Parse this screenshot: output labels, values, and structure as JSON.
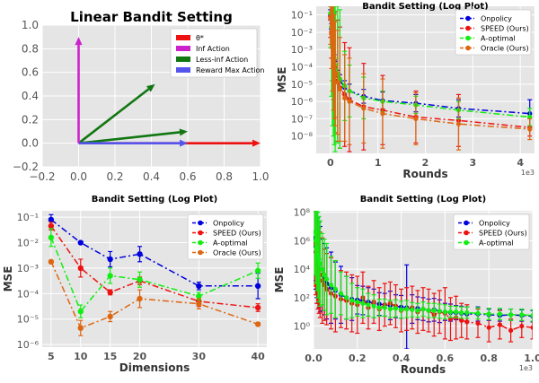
{
  "chart_data": [
    {
      "type": "line",
      "title": "Linear Bandit Setting",
      "xlabel": "",
      "ylabel": "",
      "xlim": [
        -0.2,
        1.0
      ],
      "ylim": [
        -0.2,
        1.0
      ],
      "xticks": [
        "−0.2",
        "0.0",
        "0.2",
        "0.4",
        "0.6",
        "0.8",
        "1.0"
      ],
      "yticks": [
        "−0.2",
        "0.0",
        "0.2",
        "0.4",
        "0.6",
        "0.8",
        "1.0"
      ],
      "legend_position": "top-right",
      "series": [
        {
          "name": "θ*",
          "color": "#ee1111",
          "from": [
            0,
            0
          ],
          "to": [
            1.0,
            0.0
          ]
        },
        {
          "name": "Inf Action",
          "color": "#cc22cc",
          "from": [
            0,
            0
          ],
          "to": [
            0.0,
            0.9
          ]
        },
        {
          "name": "Less-inf Action",
          "color": "#117711",
          "from": [
            0,
            0
          ],
          "to": [
            0.42,
            0.5
          ]
        },
        {
          "name": "Reward Max Action",
          "color": "#5555ee",
          "from": [
            0,
            0
          ],
          "to": [
            0.6,
            0.0
          ]
        }
      ],
      "extra_arrows": [
        {
          "color": "#117711",
          "from": [
            0,
            0
          ],
          "to": [
            0.6,
            0.1
          ]
        }
      ]
    },
    {
      "type": "line",
      "title": "Bandit Setting (Log Plot)",
      "xlabel": "Rounds",
      "ylabel": "MSE",
      "xlim": [
        -300,
        4300
      ],
      "ylim_exp": [
        -9,
        -0.5
      ],
      "xticks": [
        {
          "v": 0,
          "label": "0"
        },
        {
          "v": 1000,
          "label": "1"
        },
        {
          "v": 2000,
          "label": "2"
        },
        {
          "v": 3000,
          "label": "3"
        },
        {
          "v": 4000,
          "label": "4"
        }
      ],
      "yticks": [
        {
          "e": -1,
          "label": "10⁻¹"
        },
        {
          "e": -2,
          "label": "10⁻²"
        },
        {
          "e": -3,
          "label": "10⁻³"
        },
        {
          "e": -4,
          "label": "10⁻⁴"
        },
        {
          "e": -5,
          "label": "10⁻⁵"
        },
        {
          "e": -6,
          "label": "10⁻⁶"
        },
        {
          "e": -7,
          "label": "10⁻⁷"
        },
        {
          "e": -8,
          "label": "10⁻⁸"
        }
      ],
      "x_offset_label": "1e3",
      "legend_position": "top-right",
      "series": [
        {
          "name": "Onpolicy",
          "color": "#0000dd",
          "dash": "7,3,2,3",
          "x": [
            0,
            20,
            40,
            60,
            80,
            100,
            150,
            200,
            300,
            400,
            700,
            1100,
            1800,
            2700,
            4200
          ],
          "y": [
            -1.0,
            -1.8,
            -2.5,
            -3.1,
            -3.6,
            -4.0,
            -4.5,
            -4.8,
            -5.2,
            -5.4,
            -5.7,
            -5.95,
            -6.1,
            -6.4,
            -6.7
          ],
          "err": [
            0.3,
            0.3,
            0.3,
            0.3,
            0.3,
            0.3,
            0.3,
            0.35,
            0.4,
            0.4,
            0.4,
            0.5,
            0.5,
            0.5,
            0.8
          ]
        },
        {
          "name": "SPEED (Ours)",
          "color": "#ee1111",
          "dash": "7,3,2,3",
          "x": [
            0,
            20,
            40,
            60,
            80,
            100,
            150,
            200,
            300,
            400,
            700,
            1100,
            1800,
            2700,
            4200
          ],
          "y": [
            -1.1,
            -2.0,
            -2.8,
            -3.4,
            -3.9,
            -4.3,
            -4.8,
            -5.2,
            -5.6,
            -5.9,
            -6.3,
            -6.5,
            -6.9,
            -7.1,
            -7.5
          ],
          "err": [
            1.2,
            1.5,
            2.0,
            2.5,
            3.0,
            3.5,
            3.5,
            3.5,
            3.0,
            3.0,
            2.5,
            2.0,
            1.5,
            1.5,
            0.5
          ]
        },
        {
          "name": "A-optimal",
          "color": "#11ee11",
          "dash": "7,3,2,3",
          "x": [
            0,
            20,
            40,
            60,
            80,
            100,
            150,
            200,
            300,
            400,
            700,
            1100,
            1800,
            2700,
            4200
          ],
          "y": [
            -0.9,
            -1.7,
            -2.4,
            -3.0,
            -3.5,
            -3.9,
            -4.4,
            -4.7,
            -5.1,
            -5.4,
            -5.8,
            -6.0,
            -6.2,
            -6.5,
            -6.9
          ],
          "err": [
            2.0,
            4.0,
            5.0,
            5.0,
            5.0,
            5.0,
            4.0,
            4.0,
            2.0,
            1.5,
            1.2,
            0.6,
            0.5,
            0.5,
            0.5
          ]
        },
        {
          "name": "Oracle (Ours)",
          "color": "#dd6611",
          "dash": "7,3,2,3",
          "x": [
            0,
            20,
            40,
            60,
            80,
            100,
            150,
            200,
            300,
            400,
            700,
            1100,
            1800,
            2700,
            4200
          ],
          "y": [
            -1.2,
            -2.1,
            -2.9,
            -3.5,
            -4.0,
            -4.4,
            -4.9,
            -5.3,
            -5.8,
            -6.0,
            -6.4,
            -6.7,
            -7.0,
            -7.3,
            -7.6
          ],
          "err": [
            1.5,
            2.0,
            2.5,
            3.0,
            3.0,
            3.0,
            3.0,
            3.0,
            2.5,
            2.5,
            2.0,
            2.0,
            1.5,
            1.5,
            0.6
          ]
        }
      ]
    },
    {
      "type": "line",
      "title": "Bandit Setting (Log Plot)",
      "xlabel": "Dimensions",
      "ylabel": "MSE",
      "xlim": [
        3.5,
        41.5
      ],
      "ylim_exp": [
        -6.1,
        -0.75
      ],
      "xticks": [
        {
          "v": 5,
          "label": "5"
        },
        {
          "v": 10,
          "label": "10"
        },
        {
          "v": 15,
          "label": "15"
        },
        {
          "v": 20,
          "label": "20"
        },
        {
          "v": 30,
          "label": "30"
        },
        {
          "v": 40,
          "label": "40"
        }
      ],
      "yticks": [
        {
          "e": -1,
          "label": "10⁻¹"
        },
        {
          "e": -2,
          "label": "10⁻²"
        },
        {
          "e": -3,
          "label": "10⁻³"
        },
        {
          "e": -4,
          "label": "10⁻⁴"
        },
        {
          "e": -5,
          "label": "10⁻⁵"
        },
        {
          "e": -6,
          "label": "10⁻⁶"
        }
      ],
      "legend_position": "top-right",
      "series": [
        {
          "name": "Onpolicy",
          "color": "#0000dd",
          "dash": "7,3,2,3",
          "x": [
            5,
            10,
            15,
            20,
            30,
            40
          ],
          "y": [
            -1.1,
            -2.0,
            -2.65,
            -2.45,
            -3.7,
            -3.7
          ],
          "err": [
            0.2,
            0.05,
            0.3,
            0.3,
            0.15,
            0.5
          ]
        },
        {
          "name": "SPEED (Ours)",
          "color": "#ee1111",
          "dash": "7,3,2,3",
          "x": [
            5,
            10,
            15,
            20,
            30,
            40
          ],
          "y": [
            -1.35,
            -3.0,
            -3.95,
            -3.5,
            -4.3,
            -4.55
          ],
          "err": [
            0.15,
            0.35,
            0.1,
            0.15,
            0.2,
            0.15
          ]
        },
        {
          "name": "A-optimal",
          "color": "#11ee11",
          "dash": "7,3,2,3",
          "x": [
            5,
            10,
            15,
            20,
            30,
            40
          ],
          "y": [
            -1.8,
            -4.7,
            -3.3,
            -3.45,
            -4.1,
            -3.1
          ],
          "err": [
            0.35,
            0.25,
            0.3,
            0.3,
            0.15,
            0.3
          ]
        },
        {
          "name": "Oracle (Ours)",
          "color": "#dd6611",
          "dash": "7,3,2,3",
          "x": [
            5,
            10,
            15,
            20,
            30,
            40
          ],
          "y": [
            -2.75,
            -5.35,
            -4.9,
            -4.2,
            -4.4,
            -5.2
          ],
          "err": [
            0.05,
            0.3,
            0.2,
            0.35,
            0.2,
            0.05
          ]
        }
      ]
    },
    {
      "type": "line",
      "title": "Bandit Setting (Log Plot)",
      "xlabel": "Rounds",
      "ylabel": "MSE",
      "xlim": [
        0,
        1000
      ],
      "ylim_exp": [
        -1.6,
        8.1
      ],
      "xticks": [
        {
          "v": 0,
          "label": "0.0"
        },
        {
          "v": 200,
          "label": "0.2"
        },
        {
          "v": 400,
          "label": "0.4"
        },
        {
          "v": 600,
          "label": "0.6"
        },
        {
          "v": 800,
          "label": "0.8"
        },
        {
          "v": 1000,
          "label": "1.0"
        }
      ],
      "yticks": [
        {
          "e": 0,
          "label": "10⁰"
        },
        {
          "e": 2,
          "label": "10²"
        },
        {
          "e": 4,
          "label": "10⁴"
        },
        {
          "e": 6,
          "label": "10⁶"
        },
        {
          "e": 8,
          "label": "10⁸"
        }
      ],
      "x_offset_label": "1e3",
      "legend_position": "top-right",
      "series": [
        {
          "name": "Onpolicy",
          "color": "#0000dd",
          "dash": "7,3,2,3",
          "x": [
            5,
            10,
            15,
            20,
            25,
            30,
            40,
            50,
            60,
            80,
            100,
            125,
            150,
            175,
            200,
            225,
            250,
            275,
            300,
            325,
            350,
            375,
            400,
            425,
            450,
            475,
            500,
            525,
            550,
            575,
            600,
            625,
            650,
            675,
            700,
            750,
            800,
            850,
            900,
            950,
            1000
          ],
          "y": [
            6.2,
            5.6,
            5.0,
            4.6,
            4.3,
            4.0,
            3.6,
            3.3,
            3.0,
            2.7,
            2.5,
            2.2,
            2.0,
            1.9,
            1.85,
            1.8,
            1.7,
            1.6,
            1.55,
            1.5,
            1.45,
            1.4,
            1.35,
            1.3,
            1.2,
            1.25,
            1.2,
            1.1,
            1.15,
            1.05,
            1.0,
            0.95,
            0.95,
            0.9,
            0.85,
            0.85,
            0.8,
            0.75,
            0.8,
            0.75,
            0.7
          ],
          "err": [
            3,
            3,
            3,
            3,
            3,
            3,
            2.5,
            2.5,
            2.5,
            2.5,
            2.0,
            2.0,
            1.5,
            1.5,
            1.0,
            1.0,
            1.0,
            1.0,
            0.8,
            0.8,
            1.0,
            0.8,
            0.8,
            3.0,
            1.0,
            0.8,
            0.8,
            0.8,
            0.8,
            0.8,
            0.6,
            0.6,
            0.5,
            0.5,
            0.5,
            0.5,
            0.4,
            0.4,
            0.4,
            0.4,
            0.4
          ]
        },
        {
          "name": "SPEED (Ours)",
          "color": "#ee1111",
          "dash": "7,3,2,3",
          "x": [
            5,
            10,
            15,
            20,
            25,
            30,
            40,
            50,
            60,
            80,
            100,
            125,
            150,
            175,
            200,
            225,
            250,
            275,
            300,
            325,
            350,
            375,
            400,
            425,
            450,
            475,
            500,
            525,
            550,
            575,
            600,
            625,
            650,
            675,
            700,
            750,
            800,
            850,
            900,
            950,
            1000
          ],
          "y": [
            5.8,
            5.2,
            4.6,
            4.2,
            3.9,
            3.6,
            3.2,
            2.9,
            2.6,
            2.3,
            2.1,
            1.9,
            1.8,
            1.6,
            1.5,
            2.0,
            1.3,
            1.7,
            1.2,
            1.5,
            1.6,
            1.4,
            1.1,
            1.2,
            1.3,
            1.0,
            1.2,
            1.1,
            0.8,
            1.0,
            0.9,
            0.5,
            0.6,
            0.4,
            0.3,
            0.2,
            -0.1,
            0.1,
            -0.3,
            0.0,
            -0.1
          ],
          "err": [
            3,
            3,
            3,
            3,
            3,
            3,
            3,
            2.5,
            2.5,
            2.5,
            2.5,
            2,
            2,
            2,
            2,
            1.8,
            1.5,
            1.5,
            1.5,
            1.5,
            1.5,
            1.5,
            1.5,
            1.5,
            1.5,
            1.5,
            1.5,
            1.5,
            1.5,
            1.5,
            1.8,
            1.5,
            1.5,
            1.2,
            1.2,
            1.0,
            1.0,
            1.0,
            0.8,
            0.8,
            0.8
          ]
        },
        {
          "name": "A-optimal",
          "color": "#11ee11",
          "dash": "7,3,2,3",
          "x": [
            5,
            10,
            15,
            20,
            25,
            30,
            40,
            50,
            60,
            80,
            100,
            125,
            150,
            175,
            200,
            225,
            250,
            275,
            300,
            325,
            350,
            375,
            400,
            425,
            450,
            475,
            500,
            525,
            550,
            575,
            600,
            625,
            650,
            675,
            700,
            750,
            800,
            850,
            900,
            950,
            1000
          ],
          "y": [
            6.6,
            6.0,
            5.5,
            5.0,
            4.7,
            4.4,
            4.0,
            3.6,
            3.3,
            2.9,
            2.6,
            2.3,
            2.0,
            1.8,
            1.7,
            1.6,
            1.5,
            1.4,
            1.3,
            1.3,
            1.2,
            1.25,
            1.15,
            1.2,
            1.15,
            1.1,
            1.2,
            1.1,
            1.1,
            1.05,
            1.0,
            1.0,
            1.0,
            0.95,
            0.95,
            0.9,
            0.85,
            0.85,
            0.8,
            0.8,
            0.75
          ],
          "err": [
            3,
            3,
            3,
            3,
            3,
            3,
            2.5,
            2.5,
            2.5,
            2.0,
            2.0,
            1.5,
            1.5,
            1.2,
            1.0,
            1.0,
            0.8,
            0.8,
            0.6,
            0.6,
            0.6,
            0.6,
            0.6,
            0.6,
            0.5,
            0.5,
            0.5,
            0.5,
            0.5,
            0.5,
            0.5,
            0.4,
            0.4,
            0.4,
            0.4,
            0.4,
            0.4,
            0.4,
            0.4,
            0.4,
            0.4
          ]
        }
      ]
    }
  ]
}
